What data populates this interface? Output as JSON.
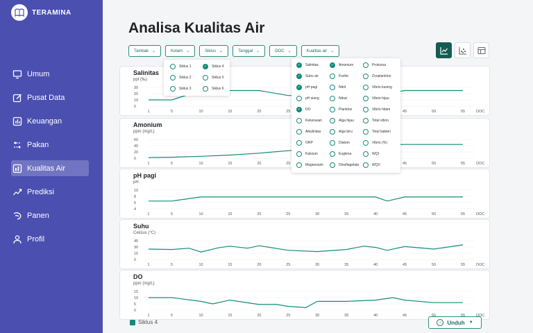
{
  "app": {
    "name": "TERAMINA"
  },
  "nav": [
    {
      "label": "Umum",
      "icon": "monitor-icon"
    },
    {
      "label": "Pusat Data",
      "icon": "edit-icon"
    },
    {
      "label": "Keuangan",
      "icon": "chart-icon"
    },
    {
      "label": "Pakan",
      "icon": "sliders-icon"
    },
    {
      "label": "Kualitas Air",
      "icon": "bar-chart-icon",
      "active": true
    },
    {
      "label": "Prediksi",
      "icon": "trend-icon"
    },
    {
      "label": "Panen",
      "icon": "shrimp-icon"
    },
    {
      "label": "Profil",
      "icon": "user-icon"
    }
  ],
  "page": {
    "title": "Analisa Kualitas Air"
  },
  "filters": [
    "Tambak",
    "Kolam",
    "Siklus",
    "Tanggal",
    "DOC",
    "Kualitas air"
  ],
  "siklus_menu": [
    {
      "label": "Siklus 1",
      "checked": false
    },
    {
      "label": "Siklus 4",
      "checked": true
    },
    {
      "label": "Siklus 2",
      "checked": false
    },
    {
      "label": "Siklus 5",
      "checked": false
    },
    {
      "label": "Siklus 3",
      "checked": false
    },
    {
      "label": "Siklus 6",
      "checked": false
    }
  ],
  "kualitas_menu": [
    [
      "Salinitas",
      true
    ],
    [
      "Amonium",
      true
    ],
    [
      "Protozoa",
      false
    ],
    [
      "Suhu air",
      true
    ],
    [
      "Fosfor",
      false
    ],
    [
      "Zooplankton",
      false
    ],
    [
      "pH pagi",
      true
    ],
    [
      "Nitrit",
      false
    ],
    [
      "Vibrio kuning",
      false
    ],
    [
      "pH siang",
      false
    ],
    [
      "Nitrat",
      false
    ],
    [
      "Vibrio hijau",
      false
    ],
    [
      "DO",
      true
    ],
    [
      "Plankton",
      false
    ],
    [
      "Vibrio hitam",
      false
    ],
    [
      "Kekerasan",
      false
    ],
    [
      "Alga hijau",
      false
    ],
    [
      "Total vibrio",
      false
    ],
    [
      "Alkalinitas",
      false
    ],
    [
      "Alga biru",
      false
    ],
    [
      "Total bakteri",
      false
    ],
    [
      "ORP",
      false
    ],
    [
      "Diatom",
      false
    ],
    [
      "Vibrio (%)",
      false
    ],
    [
      "Kalsium",
      false
    ],
    [
      "Euglena",
      false
    ],
    [
      "WQI",
      false
    ],
    [
      "Magnesium",
      false
    ],
    [
      "Dinoflagelata",
      false
    ],
    [
      "WQV",
      false
    ]
  ],
  "view_icons": [
    "line-chart-icon",
    "scatter-chart-icon",
    "table-icon"
  ],
  "legend": {
    "label": "Siklus 4",
    "color": "#138a7a"
  },
  "download": {
    "label": "Unduh"
  },
  "chart_data": [
    {
      "type": "line",
      "title": "Salinitas",
      "ylabel": "ppt (‰)",
      "yticks": [
        30,
        20,
        10,
        0
      ],
      "ylim": [
        0,
        30
      ],
      "x": [
        1,
        5,
        10,
        15,
        20,
        25,
        30,
        35,
        40,
        45,
        50,
        55
      ],
      "xlabel": "DOC",
      "series": [
        {
          "values": [
            10,
            10,
            25,
            25,
            25,
            17,
            17,
            17,
            17,
            25,
            25,
            25
          ]
        }
      ]
    },
    {
      "type": "line",
      "title": "Amonium",
      "ylabel": "ppm (mg/L)",
      "yticks": [
        60,
        40,
        20,
        0
      ],
      "ylim": [
        0,
        60
      ],
      "x": [
        1,
        5,
        10,
        15,
        20,
        25,
        30,
        35,
        40,
        45,
        50,
        55
      ],
      "xlabel": "DOC",
      "series": [
        {
          "values": [
            2,
            3,
            6,
            10,
            16,
            24,
            32,
            38,
            42,
            44,
            44,
            44
          ]
        }
      ]
    },
    {
      "type": "line",
      "title": "pH pagi",
      "ylabel": "pH",
      "yticks": [
        10,
        8,
        6,
        4
      ],
      "ylim": [
        4,
        10
      ],
      "x": [
        1,
        5,
        10,
        15,
        20,
        25,
        30,
        35,
        40,
        42,
        45,
        50,
        55
      ],
      "xlabel": "DOC",
      "series": [
        {
          "values": [
            6.5,
            6.5,
            7.8,
            7.8,
            7.8,
            7.8,
            7.8,
            7.8,
            7.8,
            6.5,
            7.8,
            7.8,
            7.8
          ]
        }
      ]
    },
    {
      "type": "line",
      "title": "Suhu",
      "ylabel": "Celcius (°C)",
      "yticks": [
        45,
        30,
        15,
        0
      ],
      "ylim": [
        0,
        45
      ],
      "x": [
        1,
        5,
        8,
        10,
        13,
        15,
        18,
        20,
        25,
        30,
        35,
        38,
        40,
        42,
        45,
        50,
        55
      ],
      "xlabel": "DOC",
      "series": [
        {
          "values": [
            25,
            24,
            27,
            18,
            28,
            32,
            27,
            33,
            22,
            19,
            24,
            32,
            29,
            22,
            31,
            25,
            35
          ]
        }
      ]
    },
    {
      "type": "line",
      "title": "DO",
      "ylabel": "ppm (mg/L)",
      "yticks": [
        15,
        10,
        5,
        0
      ],
      "ylim": [
        0,
        15
      ],
      "x": [
        1,
        5,
        10,
        12,
        15,
        20,
        23,
        25,
        28,
        30,
        35,
        40,
        43,
        45,
        50,
        55
      ],
      "xlabel": "DOC",
      "series": [
        {
          "values": [
            10,
            10,
            7,
            5,
            8,
            4.5,
            4.5,
            3,
            2,
            7,
            7,
            8,
            10,
            8,
            6,
            6
          ]
        }
      ]
    }
  ]
}
